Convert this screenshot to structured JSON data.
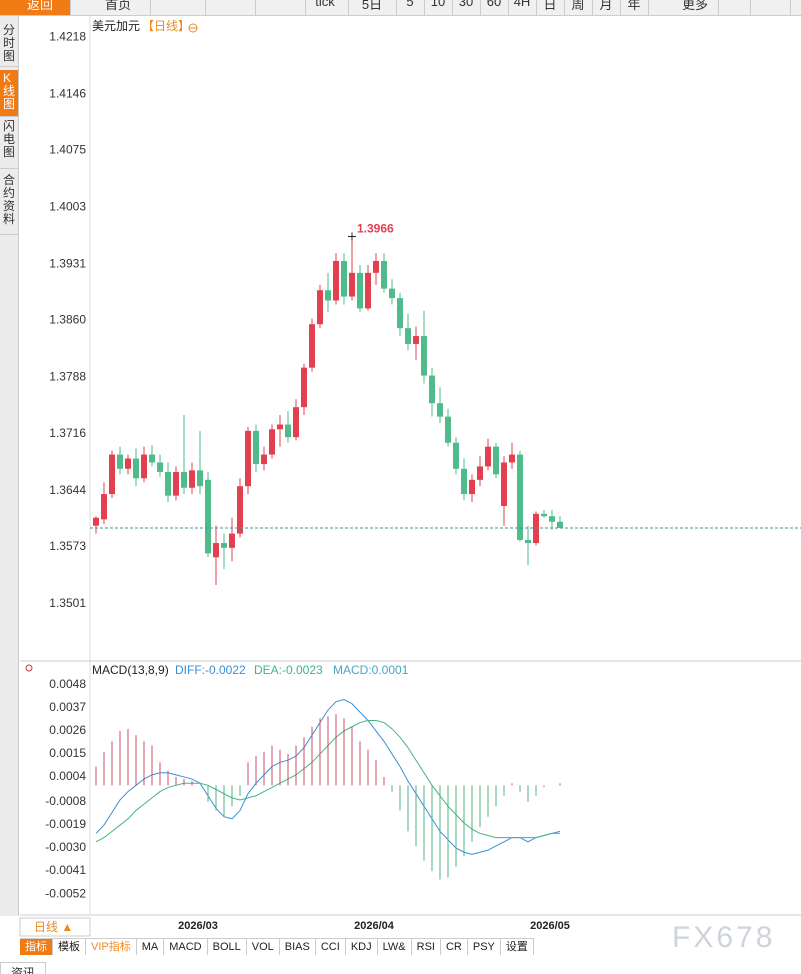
{
  "toolbar": {
    "back": "返回",
    "home": "首页",
    "items": [
      "tick",
      "5日",
      "5",
      "10",
      "30",
      "60",
      "4H",
      "日",
      "周",
      "月",
      "年"
    ],
    "more": "更多"
  },
  "side_tabs": [
    "分时图",
    "K线图",
    "闪电图",
    "合约资料"
  ],
  "chart_data": [
    {
      "type": "candlestick",
      "title": "美元加元",
      "subtitle": "【日线】",
      "categories": [
        null,
        null,
        null,
        null,
        null,
        null,
        null,
        null,
        null,
        null,
        null,
        null,
        null,
        null,
        "2026/03",
        null,
        null,
        null,
        null,
        null,
        null,
        null,
        null,
        null,
        null,
        null,
        null,
        null,
        null,
        null,
        null,
        null,
        null,
        null,
        null,
        null,
        "2026/04",
        null,
        null,
        null,
        null,
        null,
        null,
        null,
        null,
        null,
        null,
        null,
        null,
        null,
        null,
        null,
        null,
        null,
        null,
        null,
        null,
        null,
        "2026/05"
      ],
      "open": [
        1.36,
        1.3608,
        1.364,
        1.369,
        1.3672,
        1.3685,
        1.366,
        1.369,
        1.368,
        1.3668,
        1.3638,
        1.3668,
        1.3648,
        1.367,
        1.3658,
        1.356,
        1.3578,
        1.3572,
        1.359,
        1.365,
        1.372,
        1.3678,
        1.369,
        1.3722,
        1.3728,
        1.3712,
        1.375,
        1.38,
        1.3855,
        1.3898,
        1.3885,
        1.3935,
        1.389,
        1.392,
        1.3875,
        1.392,
        1.3935,
        1.39,
        1.3888,
        1.385,
        1.383,
        1.384,
        1.379,
        1.3755,
        1.3738,
        1.3705,
        1.3672,
        1.364,
        1.3658,
        1.3675,
        1.37,
        1.3625,
        1.368,
        1.369,
        1.3582,
        1.3578,
        1.3615,
        1.3612,
        1.3605
      ],
      "high": [
        1.3612,
        1.3655,
        1.3695,
        1.37,
        1.369,
        1.3698,
        1.37,
        1.3702,
        1.369,
        1.368,
        1.3675,
        1.374,
        1.368,
        1.372,
        1.3668,
        1.36,
        1.359,
        1.361,
        1.366,
        1.3725,
        1.3728,
        1.37,
        1.3728,
        1.374,
        1.3745,
        1.376,
        1.3805,
        1.3862,
        1.3905,
        1.392,
        1.3945,
        1.3945,
        1.3966,
        1.393,
        1.393,
        1.3945,
        1.3945,
        1.3912,
        1.3895,
        1.3868,
        1.3852,
        1.3872,
        1.38,
        1.3775,
        1.3748,
        1.3712,
        1.3685,
        1.3665,
        1.3688,
        1.371,
        1.3705,
        1.3688,
        1.3705,
        1.3695,
        1.36,
        1.3618,
        1.362,
        1.362,
        1.3612
      ],
      "low": [
        1.359,
        1.3602,
        1.3635,
        1.3665,
        1.3665,
        1.365,
        1.3655,
        1.3675,
        1.3662,
        1.363,
        1.3632,
        1.364,
        1.364,
        1.364,
        1.356,
        1.3525,
        1.3545,
        1.3555,
        1.3585,
        1.364,
        1.3668,
        1.367,
        1.3685,
        1.37,
        1.3705,
        1.3708,
        1.374,
        1.3795,
        1.385,
        1.387,
        1.388,
        1.388,
        1.3885,
        1.387,
        1.3872,
        1.3905,
        1.3895,
        1.388,
        1.384,
        1.3822,
        1.381,
        1.378,
        1.3738,
        1.373,
        1.37,
        1.3665,
        1.3632,
        1.363,
        1.365,
        1.367,
        1.366,
        1.36,
        1.3672,
        1.358,
        1.355,
        1.3575,
        1.361,
        1.3595,
        1.3597
      ],
      "close": [
        1.361,
        1.364,
        1.369,
        1.3672,
        1.3685,
        1.366,
        1.369,
        1.368,
        1.3668,
        1.3638,
        1.3668,
        1.3648,
        1.367,
        1.365,
        1.3565,
        1.3578,
        1.3572,
        1.359,
        1.365,
        1.372,
        1.3678,
        1.369,
        1.3722,
        1.3728,
        1.3712,
        1.375,
        1.38,
        1.3855,
        1.3898,
        1.3885,
        1.3935,
        1.389,
        1.392,
        1.3875,
        1.392,
        1.3935,
        1.39,
        1.3888,
        1.385,
        1.383,
        1.384,
        1.379,
        1.3755,
        1.3738,
        1.3705,
        1.3672,
        1.364,
        1.3658,
        1.3675,
        1.37,
        1.3665,
        1.368,
        1.369,
        1.3582,
        1.3578,
        1.3615,
        1.3612,
        1.3605,
        1.3597
      ],
      "up_color": "#e2404f",
      "down_color": "#4fbb8a",
      "peak_index": 32,
      "ylim": [
        1.343,
        1.424
      ],
      "yticks": [
        1.4218,
        1.4146,
        1.4075,
        1.4003,
        1.3931,
        {
          "value": 1.386,
          "label": "1.3860"
        },
        1.3788,
        1.3716,
        1.3644,
        1.3573,
        1.3501
      ]
    },
    {
      "type": "macd",
      "title": "MACD(13,8,9)",
      "series": [
        {
          "name": "DIFF:-0.0022",
          "color": "#3a8fd8",
          "values": [
            -0.0023,
            -0.0019,
            -0.0013,
            -0.0007,
            -0.0003,
            0.0,
            0.0003,
            0.0005,
            0.0006,
            0.0006,
            0.0005,
            0.0004,
            0.0003,
            0.0001,
            -0.0005,
            -0.0011,
            -0.0015,
            -0.0016,
            -0.0012,
            -0.0004,
            0.0001,
            0.0005,
            0.0009,
            0.0011,
            0.0012,
            0.0014,
            0.0018,
            0.0024,
            0.003,
            0.0036,
            0.004,
            0.0041,
            0.0039,
            0.0035,
            0.0031,
            0.0026,
            0.0021,
            0.0015,
            0.0009,
            0.0002,
            -0.0004,
            -0.001,
            -0.0016,
            -0.0022,
            -0.0026,
            -0.003,
            -0.0032,
            -0.0033,
            -0.0032,
            -0.0031,
            -0.0029,
            -0.0027,
            -0.0025,
            -0.0025,
            -0.0027,
            -0.0025,
            -0.0024,
            -0.0023,
            -0.0022
          ]
        },
        {
          "name": "DEA:-0.0023",
          "color": "#3fb585",
          "values": [
            -0.0027,
            -0.0025,
            -0.0022,
            -0.0019,
            -0.0016,
            -0.0012,
            -0.0009,
            -0.0006,
            -0.0003,
            -0.0001,
            0.0,
            0.0001,
            0.0001,
            0.0001,
            0.0,
            -0.0002,
            -0.0004,
            -0.0006,
            -0.0007,
            -0.0006,
            -0.0005,
            -0.0003,
            -0.0001,
            0.0001,
            0.0003,
            0.0005,
            0.0008,
            0.0011,
            0.0015,
            0.0019,
            0.0023,
            0.0026,
            0.0028,
            0.003,
            0.0031,
            0.0031,
            0.003,
            0.0027,
            0.0023,
            0.0018,
            0.0012,
            0.0006,
            0.0,
            -0.0005,
            -0.001,
            -0.0014,
            -0.0018,
            -0.0021,
            -0.0023,
            -0.0024,
            -0.0025,
            -0.0025,
            -0.0025,
            -0.0025,
            -0.0025,
            -0.0025,
            -0.0024,
            -0.0023,
            -0.0023
          ]
        },
        {
          "name": "MACD:0.0001",
          "color": "#46a6c8",
          "type": "bar",
          "up_color": "#c8506a",
          "down_color": "#50b080",
          "values": [
            0.0009,
            0.0016,
            0.0021,
            0.0026,
            0.0027,
            0.0024,
            0.0021,
            0.0019,
            0.0011,
            0.0007,
            0.0004,
            0.0003,
            0.0002,
            0.0,
            -0.0008,
            -0.0012,
            -0.0015,
            -0.001,
            -0.0005,
            0.0011,
            0.0014,
            0.0016,
            0.0019,
            0.0017,
            0.0015,
            0.0019,
            0.0023,
            0.0028,
            0.0032,
            0.0033,
            0.0034,
            0.0032,
            0.0028,
            0.0021,
            0.0017,
            0.0012,
            0.0004,
            -0.0003,
            -0.0012,
            -0.0022,
            -0.0029,
            -0.0036,
            -0.0041,
            -0.0045,
            -0.0044,
            -0.0039,
            -0.0034,
            -0.0027,
            -0.002,
            -0.0015,
            -0.001,
            -0.0005,
            0.0001,
            -0.0003,
            -0.0008,
            -0.0005,
            -0.0001,
            0.0,
            0.0001
          ]
        }
      ],
      "ylim": [
        -0.0062,
        0.0058
      ],
      "yticks": [
        0.0048,
        0.0037,
        0.0026,
        0.0015,
        0.0004,
        -0.0008,
        -0.0019,
        {
          "value": -0.003,
          "label": "-0.0030"
        },
        -0.0041,
        -0.0052
      ]
    }
  ],
  "period_label": "日线 ▲",
  "indicator_tabs": [
    "指标",
    "模板",
    "VIP指标",
    "MA",
    "MACD",
    "BOLL",
    "VOL",
    "BIAS",
    "CCI",
    "KDJ",
    "LW&",
    "RSI",
    "CR",
    "PSY",
    "设置"
  ],
  "watermark": "FX678",
  "footer": "资讯"
}
